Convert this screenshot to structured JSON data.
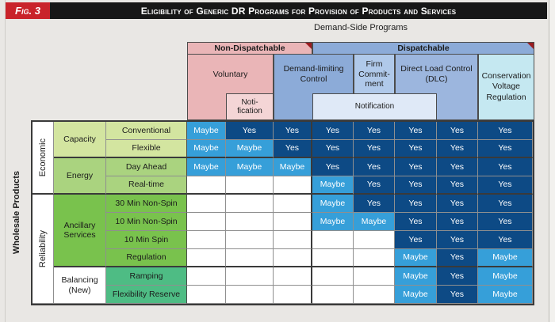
{
  "figure": {
    "badge": "Fig. 3",
    "title": "Eligibility of Generic DR Programs for Provision of Products and Services"
  },
  "header": {
    "axis_label": "Demand-Side Programs",
    "group_non_dispatchable": "Non-Dispatchable",
    "group_dispatchable": "Dispatchable",
    "programs": {
      "voluntary": "Voluntary",
      "voluntary_notification": "Noti-\nfication",
      "demand_limiting": "Demand-limiting\nControl",
      "firm_commitment": "Firm\nCommit-\nment",
      "notification": "Notification",
      "dlc": "Direct Load Control\n(DLC)",
      "conservation": "Conservation\nVoltage\nRegulation"
    }
  },
  "rows": {
    "side_label": "Wholesale Products",
    "category_economic": "Economic",
    "category_reliability": "Reliability",
    "group_capacity": "Capacity",
    "group_energy": "Energy",
    "group_ancillary": "Ancillary\nServices",
    "group_balancing": "Balancing\n(New)"
  },
  "chart_data": {
    "type": "table",
    "title": "Eligibility of Generic DR Programs for Provision of Products and Services",
    "column_axis_label": "Demand-Side Programs",
    "row_axis_label": "Wholesale Products",
    "column_groups": [
      {
        "label": "Non-Dispatchable",
        "column_indexes": [
          0,
          1,
          2
        ]
      },
      {
        "label": "Dispatchable",
        "column_indexes": [
          3,
          4,
          5,
          6,
          7
        ]
      }
    ],
    "columns": [
      "Voluntary",
      "Voluntary + Notification",
      "Demand-limiting Control",
      "Demand-limiting Control + Notification",
      "Firm Commitment + Notification",
      "Direct Load Control (DLC) + Notification",
      "Direct Load Control (DLC)",
      "Conservation Voltage Regulation"
    ],
    "rows": [
      {
        "category": "Economic",
        "group": "Capacity",
        "label": "30 Min Non-Spin",
        "placeholder": true
      },
      {
        "category": "Economic",
        "group": "Capacity",
        "label": "Conventional",
        "values": [
          "Maybe",
          "Yes",
          "Yes",
          "Yes",
          "Yes",
          "Yes",
          "Yes",
          "Yes"
        ]
      },
      {
        "category": "Economic",
        "group": "Capacity",
        "label": "Flexible",
        "values": [
          "Maybe",
          "Maybe",
          "Yes",
          "Yes",
          "Yes",
          "Yes",
          "Yes",
          "Yes"
        ]
      },
      {
        "category": "Economic",
        "group": "Energy",
        "label": "Day Ahead",
        "values": [
          "Maybe",
          "Maybe",
          "Maybe",
          "Yes",
          "Yes",
          "Yes",
          "Yes",
          "Yes"
        ]
      },
      {
        "category": "Economic",
        "group": "Energy",
        "label": "Real-time",
        "values": [
          "",
          "",
          "",
          "Maybe",
          "Yes",
          "Yes",
          "Yes",
          "Yes"
        ]
      },
      {
        "category": "Reliability",
        "group": "Ancillary Services",
        "label": "30 Min Non-Spin",
        "values": [
          "",
          "",
          "",
          "Maybe",
          "Yes",
          "Yes",
          "Yes",
          "Yes"
        ]
      },
      {
        "category": "Reliability",
        "group": "Ancillary Services",
        "label": "10 Min Non-Spin",
        "values": [
          "",
          "",
          "",
          "Maybe",
          "Maybe",
          "Yes",
          "Yes",
          "Yes"
        ]
      },
      {
        "category": "Reliability",
        "group": "Ancillary Services",
        "label": "10 Min Spin",
        "values": [
          "",
          "",
          "",
          "",
          "",
          "Yes",
          "Yes",
          "Yes"
        ]
      },
      {
        "category": "Reliability",
        "group": "Ancillary Services",
        "label": "Regulation",
        "values": [
          "",
          "",
          "",
          "",
          "",
          "Maybe",
          "Yes",
          "Maybe"
        ]
      },
      {
        "category": "Reliability",
        "group": "Balancing (New)",
        "label": "Ramping",
        "values": [
          "",
          "",
          "",
          "",
          "",
          "Maybe",
          "Yes",
          "Maybe"
        ]
      },
      {
        "category": "Reliability",
        "group": "Balancing (New)",
        "label": "Flexibility Reserve",
        "values": [
          "",
          "",
          "",
          "",
          "",
          "Maybe",
          "Yes",
          "Maybe"
        ]
      }
    ]
  },
  "colors": {
    "yes": "#0d4a85",
    "maybe": "#369fd9",
    "badge_red": "#c9232a",
    "title_bar": "#171717",
    "non_dispatchable": "#eab5b7",
    "notification_pink": "#f4d5d6",
    "dispatchable": "#8cabd8",
    "firm_commitment": "#b0c9ea",
    "notification_blue": "#dfe9f7",
    "dlc": "#9cb6de",
    "conservation": "#c5e8f1",
    "capacity_green": "#d3e5a0",
    "energy_green": "#aad37f",
    "ancillary_green": "#79c24d",
    "balancing_teal": "#4ebc84",
    "corner_marker": "#9b1c20"
  }
}
